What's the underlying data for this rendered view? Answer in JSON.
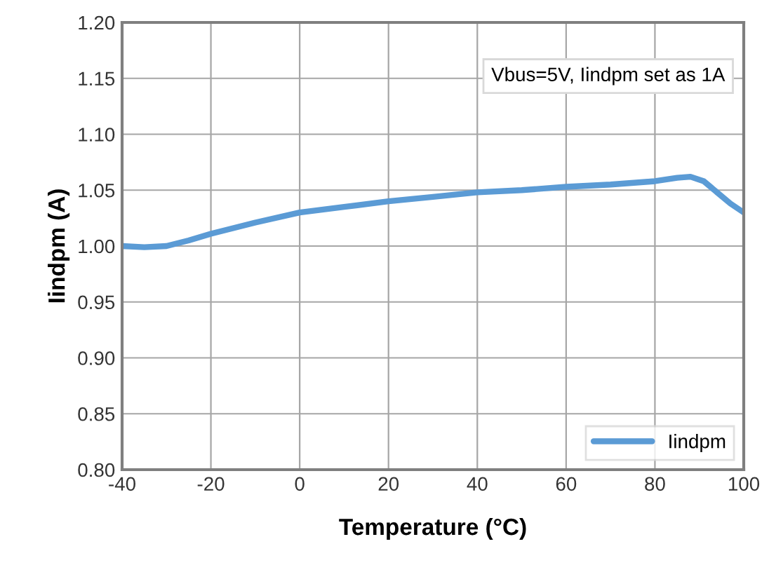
{
  "chart_data": {
    "type": "line",
    "xlabel": "Temperature (°C)",
    "ylabel": "Iindpm (A)",
    "annotations": [
      "Vbus=5V, Iindpm set as 1A"
    ],
    "x": [
      -40,
      -35,
      -30,
      -25,
      -20,
      -10,
      0,
      10,
      20,
      30,
      40,
      50,
      60,
      70,
      80,
      85,
      88,
      91,
      94,
      97,
      100
    ],
    "series": [
      {
        "name": "Iindpm",
        "color": "#5b9bd5",
        "values": [
          1.0,
          0.999,
          1.0,
          1.005,
          1.011,
          1.021,
          1.03,
          1.035,
          1.04,
          1.044,
          1.048,
          1.05,
          1.053,
          1.055,
          1.058,
          1.061,
          1.062,
          1.058,
          1.048,
          1.038,
          1.03
        ]
      }
    ],
    "xlim": [
      -40,
      100
    ],
    "xticks": [
      -40,
      -20,
      0,
      20,
      40,
      60,
      80,
      100
    ],
    "ylim": [
      0.8,
      1.2
    ],
    "yticks": [
      {
        "value": 0.8,
        "label": "0.80"
      },
      {
        "value": 0.85,
        "label": "0.85"
      },
      {
        "value": 0.9,
        "label": "0.90"
      },
      {
        "value": 0.95,
        "label": "0.95"
      },
      {
        "value": 1.0,
        "label": "1.00"
      },
      {
        "value": 1.05,
        "label": "1.05"
      },
      {
        "value": 1.1,
        "label": "1.10"
      },
      {
        "value": 1.15,
        "label": "1.15"
      },
      {
        "value": 1.2,
        "label": "1.20"
      }
    ],
    "grid": true,
    "legend": "bottom right",
    "marker": "none",
    "line_style": "solid"
  }
}
